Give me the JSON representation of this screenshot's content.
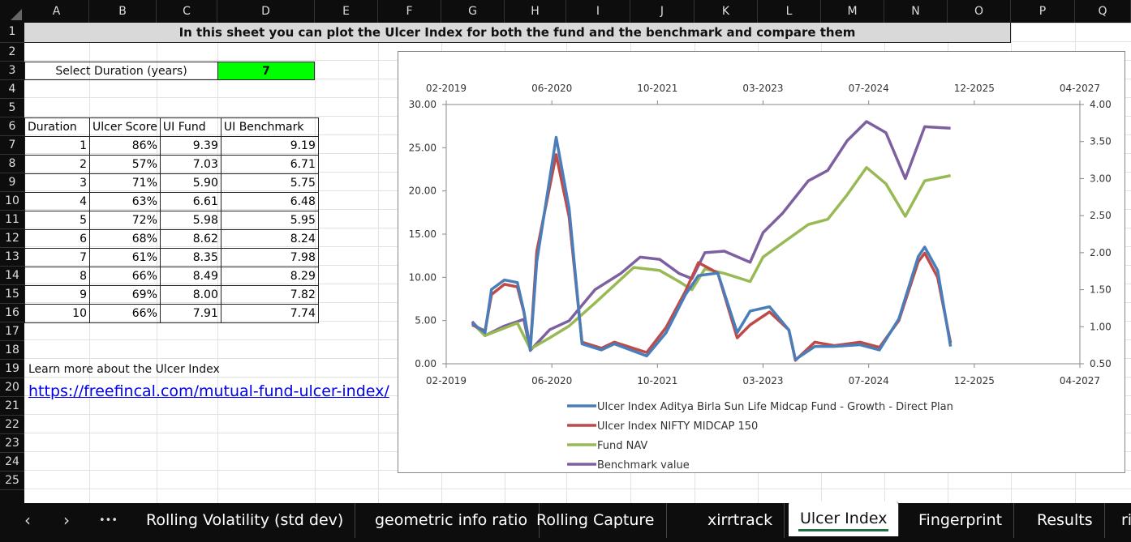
{
  "columns": [
    "A",
    "B",
    "C",
    "D",
    "E",
    "F",
    "G",
    "H",
    "I",
    "J",
    "K",
    "L",
    "M",
    "N",
    "O",
    "P",
    "Q"
  ],
  "rows": [
    "1",
    "2",
    "3",
    "4",
    "5",
    "6",
    "7",
    "8",
    "9",
    "10",
    "11",
    "12",
    "13",
    "14",
    "15",
    "16",
    "17",
    "18",
    "19",
    "20",
    "21",
    "22",
    "23",
    "24",
    "25"
  ],
  "sheet": {
    "title": "In this sheet you can plot the Ulcer Index for both the fund and the benchmark and compare them",
    "duration_label": "Select Duration (years)",
    "duration_value": "7",
    "duration_color": "#00ff00",
    "table": {
      "headers": [
        "Duration",
        "Ulcer Score",
        "UI Fund",
        "UI Benchmark"
      ],
      "rows": [
        [
          "1",
          "86%",
          "9.39",
          "9.19"
        ],
        [
          "2",
          "57%",
          "7.03",
          "6.71"
        ],
        [
          "3",
          "71%",
          "5.90",
          "5.75"
        ],
        [
          "4",
          "63%",
          "6.61",
          "6.48"
        ],
        [
          "5",
          "72%",
          "5.98",
          "5.95"
        ],
        [
          "6",
          "68%",
          "8.62",
          "8.24"
        ],
        [
          "7",
          "61%",
          "8.35",
          "7.98"
        ],
        [
          "8",
          "66%",
          "8.49",
          "8.29"
        ],
        [
          "9",
          "69%",
          "8.00",
          "7.82"
        ],
        [
          "10",
          "66%",
          "7.91",
          "7.74"
        ]
      ]
    },
    "learn_more": "Learn more about the Ulcer Index",
    "link": "https://freefincal.com/mutual-fund-ulcer-index/"
  },
  "chart_data": {
    "type": "line",
    "x_ticks": [
      "02-2019",
      "06-2020",
      "10-2021",
      "03-2023",
      "07-2024",
      "12-2025",
      "04-2027"
    ],
    "xlim": [
      "2019-02",
      "2027-04"
    ],
    "y_left": {
      "lim": [
        0,
        30
      ],
      "ticks": [
        "0.00",
        "5.00",
        "10.00",
        "15.00",
        "20.00",
        "25.00",
        "30.00"
      ]
    },
    "y_right": {
      "lim": [
        0.5,
        4
      ],
      "ticks": [
        "0.50",
        "1.00",
        "1.50",
        "2.00",
        "2.50",
        "3.00",
        "3.50",
        "4.00"
      ]
    },
    "legend_position": "bottom",
    "series": [
      {
        "name": "Ulcer Index Aditya Birla Sun Life Midcap Fund - Growth - Direct Plan",
        "axis": "left",
        "color": "#4a7ebb",
        "points": [
          [
            "2019-06",
            4.7
          ],
          [
            "2019-08",
            3.6
          ],
          [
            "2019-09",
            8.6
          ],
          [
            "2019-11",
            9.7
          ],
          [
            "2020-01",
            9.4
          ],
          [
            "2020-02",
            6.1
          ],
          [
            "2020-03",
            1.6
          ],
          [
            "2020-04",
            11.8
          ],
          [
            "2020-07",
            26.2
          ],
          [
            "2020-09",
            18
          ],
          [
            "2020-11",
            2.3
          ],
          [
            "2021-02",
            1.6
          ],
          [
            "2021-04",
            2.3
          ],
          [
            "2021-09",
            0.9
          ],
          [
            "2021-12",
            3.6
          ],
          [
            "2022-03",
            8.0
          ],
          [
            "2022-05",
            10.2
          ],
          [
            "2022-08",
            10.5
          ],
          [
            "2022-11",
            3.6
          ],
          [
            "2023-01",
            6.1
          ],
          [
            "2023-04",
            6.6
          ],
          [
            "2023-07",
            3.9
          ],
          [
            "2023-08",
            0.5
          ],
          [
            "2023-11",
            2.0
          ],
          [
            "2024-02",
            2.0
          ],
          [
            "2024-06",
            2.2
          ],
          [
            "2024-09",
            1.6
          ],
          [
            "2024-12",
            5.2
          ],
          [
            "2025-03",
            12.4
          ],
          [
            "2025-04",
            13.5
          ],
          [
            "2025-06",
            10.8
          ],
          [
            "2025-08",
            2.0
          ]
        ]
      },
      {
        "name": "Ulcer Index NIFTY MIDCAP 150",
        "axis": "left",
        "color": "#be4b48",
        "points": [
          [
            "2019-06",
            4.5
          ],
          [
            "2019-08",
            3.8
          ],
          [
            "2019-09",
            8.0
          ],
          [
            "2019-11",
            9.2
          ],
          [
            "2020-01",
            8.9
          ],
          [
            "2020-02",
            6.0
          ],
          [
            "2020-03",
            1.8
          ],
          [
            "2020-04",
            13
          ],
          [
            "2020-07",
            24.2
          ],
          [
            "2020-09",
            17
          ],
          [
            "2020-11",
            2.5
          ],
          [
            "2021-02",
            1.8
          ],
          [
            "2021-04",
            2.5
          ],
          [
            "2021-09",
            1.3
          ],
          [
            "2021-12",
            4.2
          ],
          [
            "2022-03",
            8.4
          ],
          [
            "2022-05",
            11.7
          ],
          [
            "2022-08",
            10.5
          ],
          [
            "2022-11",
            3.0
          ],
          [
            "2023-01",
            4.5
          ],
          [
            "2023-04",
            6.0
          ],
          [
            "2023-07",
            3.9
          ],
          [
            "2023-08",
            0.4
          ],
          [
            "2023-11",
            2.5
          ],
          [
            "2024-02",
            2.1
          ],
          [
            "2024-06",
            2.5
          ],
          [
            "2024-09",
            1.9
          ],
          [
            "2024-12",
            5.0
          ],
          [
            "2025-03",
            11.8
          ],
          [
            "2025-04",
            12.8
          ],
          [
            "2025-06",
            10.0
          ],
          [
            "2025-08",
            2.4
          ]
        ]
      },
      {
        "name": "Fund NAV",
        "axis": "right",
        "color": "#98b954",
        "points": [
          [
            "2019-06",
            1.05
          ],
          [
            "2019-08",
            0.88
          ],
          [
            "2020-01",
            1.05
          ],
          [
            "2020-03",
            0.7
          ],
          [
            "2020-06",
            0.85
          ],
          [
            "2020-09",
            1.01
          ],
          [
            "2021-01",
            1.32
          ],
          [
            "2021-07",
            1.8
          ],
          [
            "2021-11",
            1.76
          ],
          [
            "2022-02",
            1.61
          ],
          [
            "2022-04",
            1.5
          ],
          [
            "2022-06",
            1.78
          ],
          [
            "2022-09",
            1.72
          ],
          [
            "2023-01",
            1.61
          ],
          [
            "2023-03",
            1.94
          ],
          [
            "2023-06",
            2.13
          ],
          [
            "2023-10",
            2.38
          ],
          [
            "2024-01",
            2.45
          ],
          [
            "2024-04",
            2.78
          ],
          [
            "2024-07",
            3.15
          ],
          [
            "2024-10",
            2.93
          ],
          [
            "2025-01",
            2.49
          ],
          [
            "2025-04",
            2.97
          ],
          [
            "2025-08",
            3.04
          ]
        ]
      },
      {
        "name": "Benchmark value",
        "axis": "right",
        "color": "#7d60a0",
        "points": [
          [
            "2019-06",
            1.07
          ],
          [
            "2019-08",
            0.88
          ],
          [
            "2019-11",
            1.01
          ],
          [
            "2020-02",
            1.1
          ],
          [
            "2020-03",
            0.68
          ],
          [
            "2020-06",
            0.96
          ],
          [
            "2020-09",
            1.08
          ],
          [
            "2021-01",
            1.5
          ],
          [
            "2021-05",
            1.72
          ],
          [
            "2021-08",
            1.94
          ],
          [
            "2021-11",
            1.91
          ],
          [
            "2022-02",
            1.72
          ],
          [
            "2022-04",
            1.65
          ],
          [
            "2022-06",
            2.0
          ],
          [
            "2022-09",
            2.02
          ],
          [
            "2023-01",
            1.87
          ],
          [
            "2023-03",
            2.27
          ],
          [
            "2023-06",
            2.53
          ],
          [
            "2023-10",
            2.97
          ],
          [
            "2024-01",
            3.11
          ],
          [
            "2024-04",
            3.51
          ],
          [
            "2024-07",
            3.77
          ],
          [
            "2024-10",
            3.62
          ],
          [
            "2025-01",
            3.0
          ],
          [
            "2025-04",
            3.7
          ],
          [
            "2025-08",
            3.68
          ]
        ]
      }
    ]
  },
  "tabs": {
    "prev": "‹",
    "next": "›",
    "more": "•••",
    "items": [
      {
        "label": "Rolling Volatility (std dev)"
      },
      {
        "label": "geometric info ratio"
      },
      {
        "label": "Rolling Capture"
      },
      {
        "label": "xirrtrack"
      },
      {
        "label": "Ulcer Index",
        "active": true
      },
      {
        "label": "Fingerprint"
      },
      {
        "label": "Results"
      },
      {
        "label": "ri"
      }
    ]
  }
}
